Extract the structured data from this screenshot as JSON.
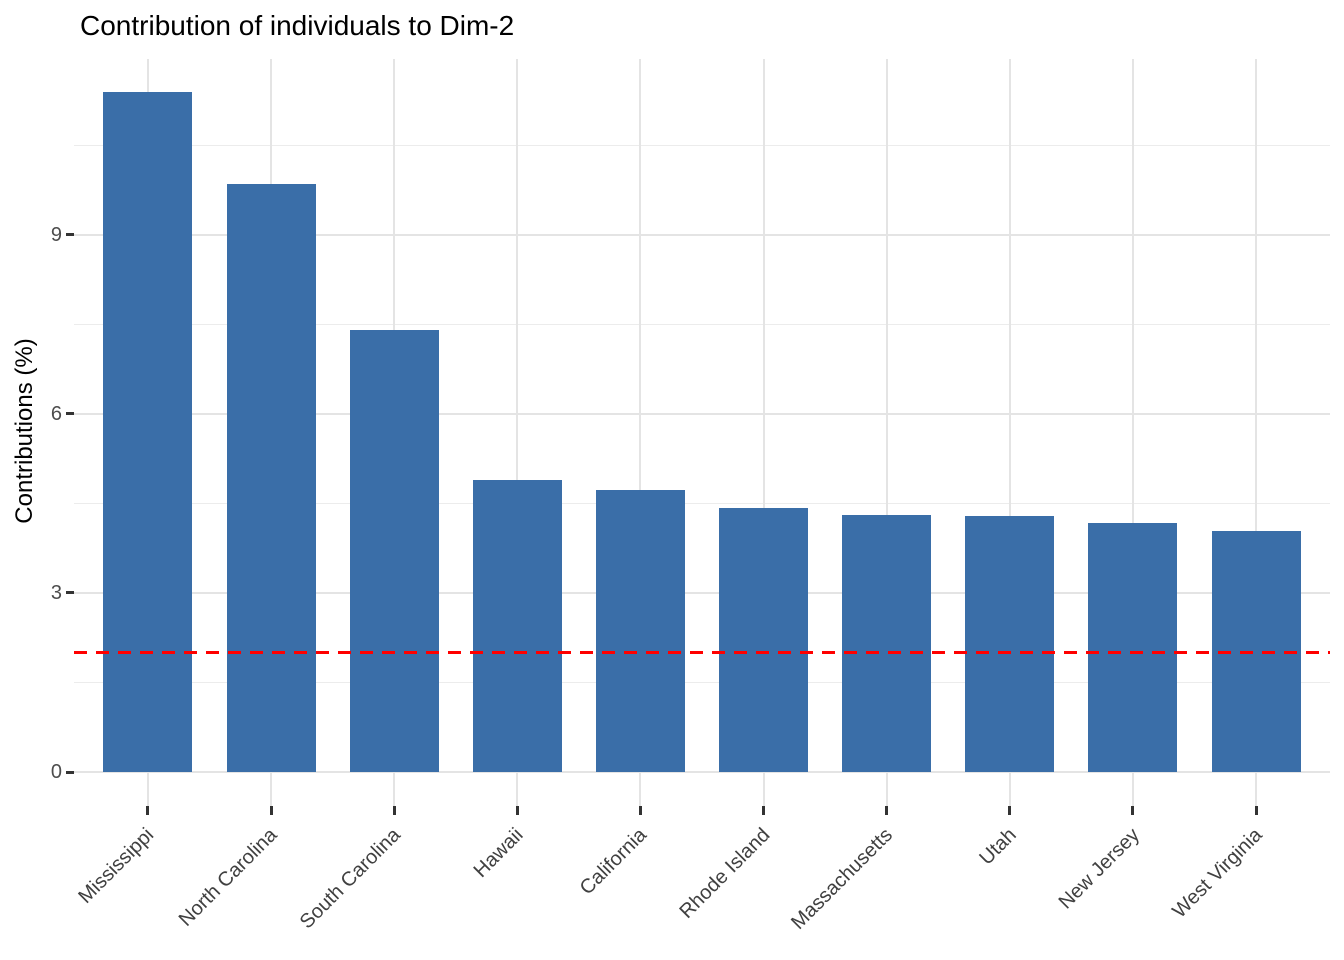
{
  "chart_data": {
    "type": "bar",
    "title": "Contribution of individuals to Dim-2",
    "xlabel": "",
    "ylabel": "Contributions (%)",
    "categories": [
      "Mississippi",
      "North Carolina",
      "South Carolina",
      "Hawaii",
      "California",
      "Rhode Island",
      "Massachusetts",
      "Utah",
      "New Jersey",
      "West Virginia"
    ],
    "values": [
      11.4,
      9.85,
      7.41,
      4.89,
      4.73,
      4.42,
      4.31,
      4.29,
      4.17,
      4.04
    ],
    "y_major_ticks": [
      0,
      3,
      6,
      9
    ],
    "y_minor_gridlines": [
      1.5,
      4.5,
      7.5,
      10.5
    ],
    "ylim": [
      0,
      12
    ],
    "reference_line": {
      "value": 2,
      "color": "#ff0000",
      "style": "dashed"
    },
    "bar_color": "#3a6ea8",
    "grid_color": "#e4e4e4",
    "axis_text_color": "#4d4d4d",
    "x_tick_label_angle_deg": 45,
    "grid": true,
    "legend": false
  }
}
